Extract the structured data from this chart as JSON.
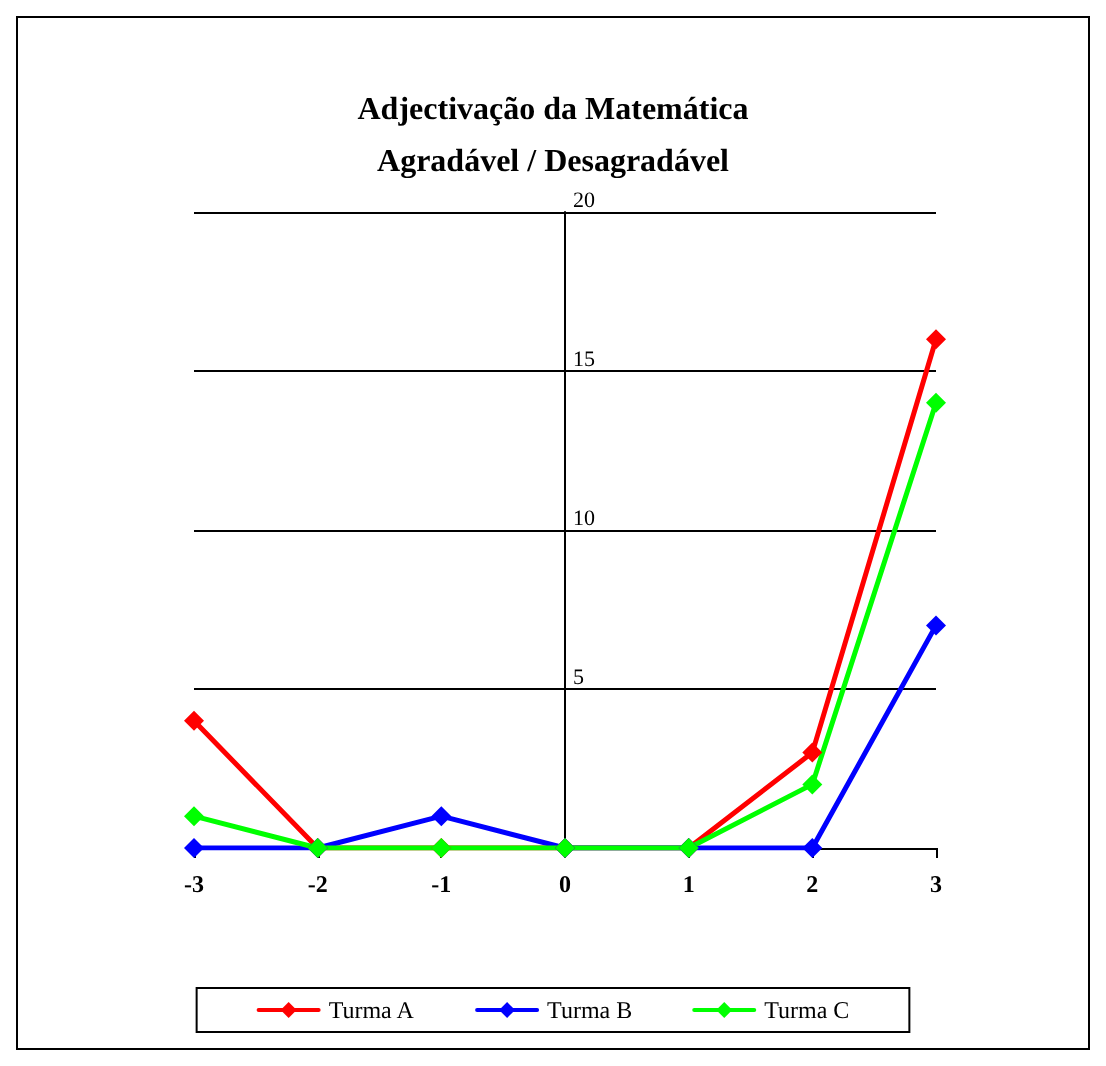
{
  "chart_data": {
    "type": "line",
    "title": "Adjectivação da Matemática\nAgradável / Desagradável",
    "x": [
      -3,
      -2,
      -1,
      0,
      1,
      2,
      3
    ],
    "xlim": [
      -3,
      3
    ],
    "xticks": [
      -3,
      -2,
      -1,
      0,
      1,
      2,
      3
    ],
    "ylim": [
      0,
      20
    ],
    "yticks": [
      5,
      10,
      15,
      20
    ],
    "series": [
      {
        "name": "Turma A",
        "color": "#ff0000",
        "values": [
          4,
          0,
          0,
          0,
          0,
          3,
          16
        ]
      },
      {
        "name": "Turma B",
        "color": "#0000ff",
        "values": [
          0,
          0,
          1,
          0,
          0,
          0,
          7
        ]
      },
      {
        "name": "Turma C",
        "color": "#00ff00",
        "values": [
          1,
          0,
          0,
          0,
          0,
          2,
          14
        ]
      }
    ],
    "grid": "y",
    "legend": "bottom",
    "marker": "diamond",
    "line_style": "solid"
  }
}
